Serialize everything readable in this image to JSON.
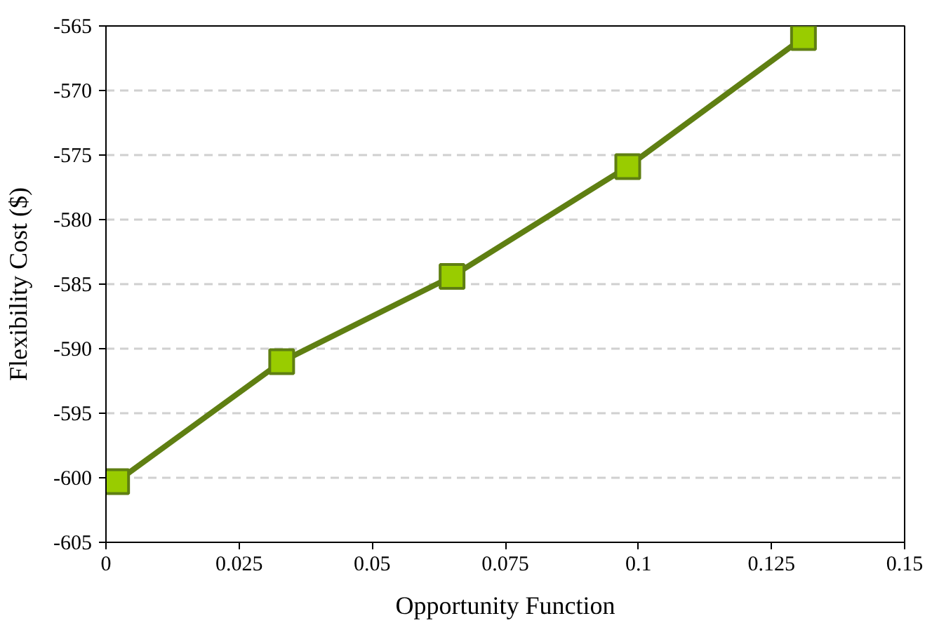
{
  "chart_data": {
    "type": "line",
    "xlabel": "Opportunity Function",
    "ylabel": "Flexibility Cost ($)",
    "x": [
      0.002,
      0.033,
      0.065,
      0.098,
      0.131
    ],
    "series": [
      {
        "color": "#5f7f12",
        "values": [
          -600.3,
          -591.0,
          -584.4,
          -575.9,
          -565.9
        ]
      }
    ],
    "xlim": [
      0,
      0.15
    ],
    "xticks": [
      0,
      0.025,
      0.05,
      0.075,
      0.1,
      0.125,
      0.15
    ],
    "ylim": [
      -605,
      -565
    ],
    "yticks": [
      -605,
      -600,
      -595,
      -590,
      -585,
      -580,
      -575,
      -570,
      -565
    ],
    "grid": "y",
    "marker": "square",
    "line_style": "solid"
  }
}
